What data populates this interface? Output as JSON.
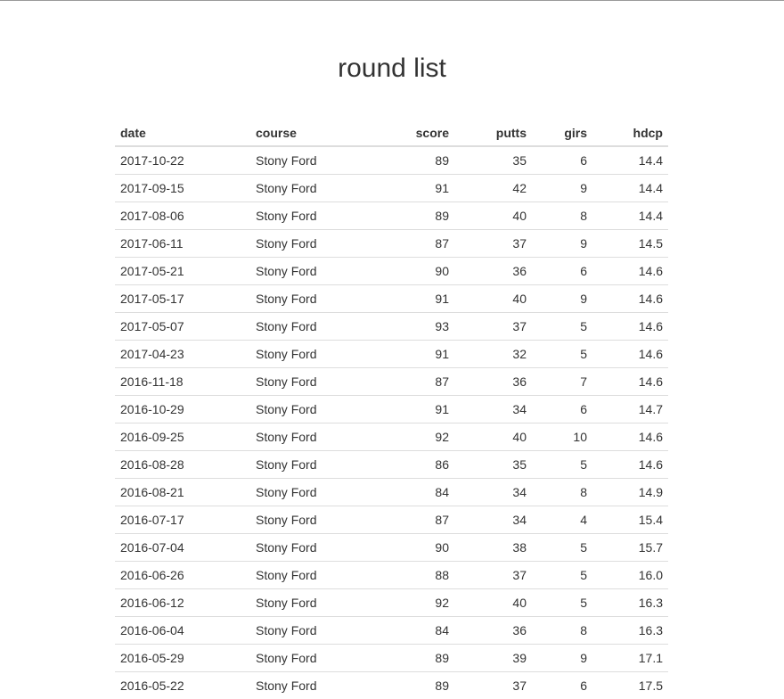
{
  "page": {
    "title": "round list"
  },
  "table": {
    "headers": {
      "date": "date",
      "course": "course",
      "score": "score",
      "putts": "putts",
      "girs": "girs",
      "hdcp": "hdcp"
    },
    "rows": [
      {
        "date": "2017-10-22",
        "course": "Stony Ford",
        "score": "89",
        "putts": "35",
        "girs": "6",
        "hdcp": "14.4"
      },
      {
        "date": "2017-09-15",
        "course": "Stony Ford",
        "score": "91",
        "putts": "42",
        "girs": "9",
        "hdcp": "14.4"
      },
      {
        "date": "2017-08-06",
        "course": "Stony Ford",
        "score": "89",
        "putts": "40",
        "girs": "8",
        "hdcp": "14.4"
      },
      {
        "date": "2017-06-11",
        "course": "Stony Ford",
        "score": "87",
        "putts": "37",
        "girs": "9",
        "hdcp": "14.5"
      },
      {
        "date": "2017-05-21",
        "course": "Stony Ford",
        "score": "90",
        "putts": "36",
        "girs": "6",
        "hdcp": "14.6"
      },
      {
        "date": "2017-05-17",
        "course": "Stony Ford",
        "score": "91",
        "putts": "40",
        "girs": "9",
        "hdcp": "14.6"
      },
      {
        "date": "2017-05-07",
        "course": "Stony Ford",
        "score": "93",
        "putts": "37",
        "girs": "5",
        "hdcp": "14.6"
      },
      {
        "date": "2017-04-23",
        "course": "Stony Ford",
        "score": "91",
        "putts": "32",
        "girs": "5",
        "hdcp": "14.6"
      },
      {
        "date": "2016-11-18",
        "course": "Stony Ford",
        "score": "87",
        "putts": "36",
        "girs": "7",
        "hdcp": "14.6"
      },
      {
        "date": "2016-10-29",
        "course": "Stony Ford",
        "score": "91",
        "putts": "34",
        "girs": "6",
        "hdcp": "14.7"
      },
      {
        "date": "2016-09-25",
        "course": "Stony Ford",
        "score": "92",
        "putts": "40",
        "girs": "10",
        "hdcp": "14.6"
      },
      {
        "date": "2016-08-28",
        "course": "Stony Ford",
        "score": "86",
        "putts": "35",
        "girs": "5",
        "hdcp": "14.6"
      },
      {
        "date": "2016-08-21",
        "course": "Stony Ford",
        "score": "84",
        "putts": "34",
        "girs": "8",
        "hdcp": "14.9"
      },
      {
        "date": "2016-07-17",
        "course": "Stony Ford",
        "score": "87",
        "putts": "34",
        "girs": "4",
        "hdcp": "15.4"
      },
      {
        "date": "2016-07-04",
        "course": "Stony Ford",
        "score": "90",
        "putts": "38",
        "girs": "5",
        "hdcp": "15.7"
      },
      {
        "date": "2016-06-26",
        "course": "Stony Ford",
        "score": "88",
        "putts": "37",
        "girs": "5",
        "hdcp": "16.0"
      },
      {
        "date": "2016-06-12",
        "course": "Stony Ford",
        "score": "92",
        "putts": "40",
        "girs": "5",
        "hdcp": "16.3"
      },
      {
        "date": "2016-06-04",
        "course": "Stony Ford",
        "score": "84",
        "putts": "36",
        "girs": "8",
        "hdcp": "16.3"
      },
      {
        "date": "2016-05-29",
        "course": "Stony Ford",
        "score": "89",
        "putts": "39",
        "girs": "9",
        "hdcp": "17.1"
      },
      {
        "date": "2016-05-22",
        "course": "Stony Ford",
        "score": "89",
        "putts": "37",
        "girs": "6",
        "hdcp": "17.5"
      }
    ]
  }
}
